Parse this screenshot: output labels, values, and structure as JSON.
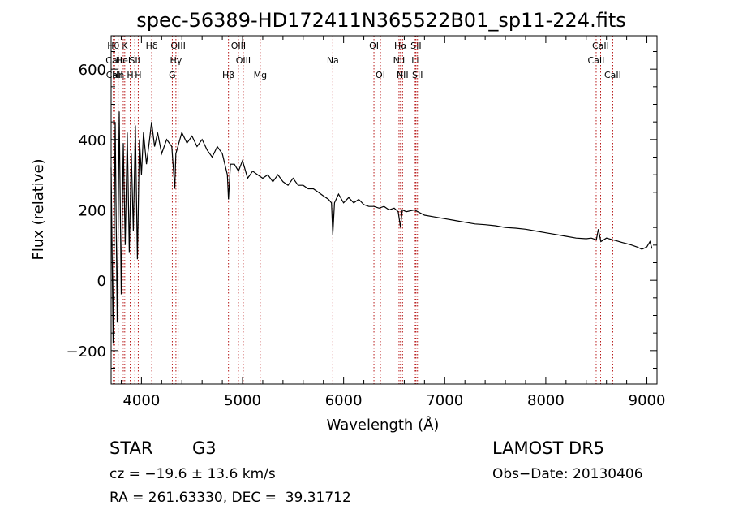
{
  "chart_data": {
    "type": "line",
    "title": "spec-56389-HD172411N365522B01_sp11-224.fits",
    "xlabel": "Wavelength (Å)",
    "ylabel": "Flux (relative)",
    "xlim": [
      3700,
      9100
    ],
    "ylim": [
      -295,
      695
    ],
    "x_ticks": [
      4000,
      5000,
      6000,
      7000,
      8000,
      9000
    ],
    "y_ticks": [
      -200,
      0,
      200,
      400,
      600
    ],
    "series": [
      {
        "x": [
          3700,
          3720,
          3740,
          3760,
          3780,
          3800,
          3820,
          3840,
          3860,
          3880,
          3900,
          3920,
          3940,
          3960,
          3980,
          4000,
          4020,
          4050,
          4080,
          4100,
          4130,
          4160,
          4200,
          4250,
          4300,
          4330,
          4340,
          4360,
          4400,
          4450,
          4500,
          4550,
          4600,
          4650,
          4700,
          4750,
          4800,
          4850,
          4861,
          4880,
          4920,
          4960,
          5000,
          5050,
          5100,
          5150,
          5200,
          5250,
          5300,
          5350,
          5400,
          5450,
          5500,
          5550,
          5600,
          5650,
          5700,
          5750,
          5800,
          5850,
          5880,
          5893,
          5910,
          5950,
          6000,
          6050,
          6100,
          6150,
          6200,
          6250,
          6300,
          6350,
          6400,
          6450,
          6500,
          6540,
          6563,
          6580,
          6620,
          6700,
          6800,
          6900,
          7000,
          7100,
          7200,
          7300,
          7400,
          7500,
          7600,
          7700,
          7800,
          7900,
          8000,
          8100,
          8200,
          8300,
          8400,
          8450,
          8500,
          8520,
          8545,
          8600,
          8662,
          8700,
          8750,
          8800,
          8850,
          8900,
          8950,
          9000,
          9030,
          9050
        ],
        "y": [
          320,
          -180,
          450,
          -120,
          480,
          -40,
          390,
          100,
          420,
          80,
          360,
          140,
          440,
          60,
          400,
          300,
          420,
          330,
          400,
          450,
          380,
          420,
          360,
          400,
          380,
          260,
          360,
          380,
          420,
          390,
          410,
          380,
          400,
          370,
          350,
          380,
          360,
          300,
          230,
          330,
          330,
          310,
          340,
          290,
          310,
          300,
          290,
          300,
          280,
          300,
          280,
          270,
          290,
          270,
          270,
          260,
          260,
          250,
          240,
          230,
          220,
          130,
          220,
          245,
          220,
          235,
          220,
          230,
          215,
          210,
          210,
          205,
          210,
          200,
          205,
          195,
          150,
          200,
          195,
          200,
          185,
          180,
          175,
          170,
          165,
          160,
          158,
          155,
          150,
          148,
          145,
          140,
          135,
          130,
          125,
          120,
          118,
          120,
          115,
          145,
          110,
          120,
          115,
          112,
          108,
          104,
          100,
          95,
          88,
          95,
          110,
          90
        ]
      }
    ],
    "line_markers": [
      {
        "name": "Hθ",
        "x": 3722,
        "row": 0
      },
      {
        "name": "CaII",
        "x": 3730,
        "row": 1
      },
      {
        "name": "CaII",
        "x": 3734,
        "row": 2
      },
      {
        "name": "Hη",
        "x": 3770,
        "row": 2
      },
      {
        "name": "K",
        "x": 3835,
        "row": 0
      },
      {
        "name": "HeI",
        "x": 3820,
        "row": 1
      },
      {
        "name": "H",
        "x": 3889,
        "row": 2
      },
      {
        "name": "Hδ",
        "x": 4102,
        "row": 0
      },
      {
        "name": "SII",
        "x": 3934,
        "row": 1
      },
      {
        "name": "H",
        "x": 3968,
        "row": 2
      },
      {
        "name": "OIII",
        "x": 4363,
        "row": 0
      },
      {
        "name": "Hγ",
        "x": 4341,
        "row": 1
      },
      {
        "name": "G",
        "x": 4305,
        "row": 2
      },
      {
        "name": "Hβ",
        "x": 4861,
        "row": 2
      },
      {
        "name": "OIII",
        "x": 4959,
        "row": 0
      },
      {
        "name": "OIII",
        "x": 5007,
        "row": 1
      },
      {
        "name": "Mg",
        "x": 5175,
        "row": 2
      },
      {
        "name": "Na",
        "x": 5893,
        "row": 1
      },
      {
        "name": "OI",
        "x": 6300,
        "row": 0
      },
      {
        "name": "OI",
        "x": 6364,
        "row": 2
      },
      {
        "name": "Hα",
        "x": 6563,
        "row": 0
      },
      {
        "name": "NII",
        "x": 6548,
        "row": 1
      },
      {
        "name": "NII",
        "x": 6583,
        "row": 2
      },
      {
        "name": "SII",
        "x": 6716,
        "row": 0
      },
      {
        "name": "Li",
        "x": 6708,
        "row": 1
      },
      {
        "name": "SII",
        "x": 6731,
        "row": 2
      },
      {
        "name": "CaII",
        "x": 8542,
        "row": 0
      },
      {
        "name": "CaII",
        "x": 8498,
        "row": 1
      },
      {
        "name": "CaII",
        "x": 8662,
        "row": 2
      }
    ]
  },
  "info": {
    "object_type": "STAR",
    "subclass": "G3",
    "survey": "LAMOST DR5",
    "cz": "cz = −19.6 ± 13.6 km/s",
    "obs_date": "Obs−Date: 20130406",
    "coords": "RA = 261.63330, DEC =  39.31712"
  },
  "colors": {
    "line": "#000000",
    "marker": "#b00000"
  }
}
